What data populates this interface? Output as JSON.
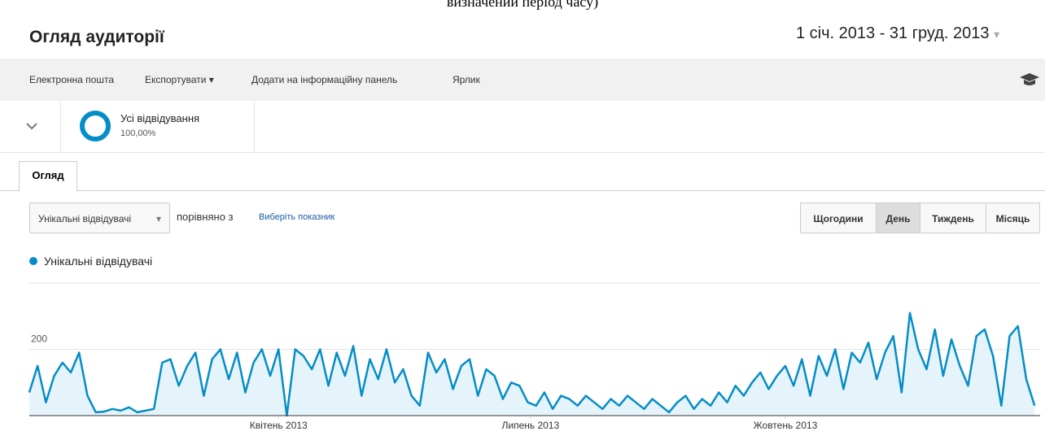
{
  "top_caption": "визначений період часу)",
  "header": {
    "title": "Огляд аудиторії",
    "date_range": "1 січ. 2013 - 31 груд. 2013"
  },
  "toolbar": {
    "items": [
      "Електронна пошта",
      "Експортувати ▾",
      "Додати на інформаційну панель",
      "Ярлик"
    ]
  },
  "segment": {
    "name": "Усі відвідування",
    "percent": "100,00%"
  },
  "tabs": [
    "Огляд"
  ],
  "controls": {
    "metric": "Унікальні відвідувачі",
    "compare_text": "порівняно з",
    "compare_link": "Виберіть показник",
    "intervals": [
      "Щогодини",
      "День",
      "Тиждень",
      "Місяць"
    ],
    "active_interval": 1
  },
  "chart": {
    "type": "line",
    "series": [
      {
        "name": "Унікальні відвідувачі",
        "color": "#058dc7",
        "values": [
          70,
          150,
          40,
          120,
          160,
          130,
          190,
          60,
          10,
          12,
          20,
          15,
          25,
          10,
          15,
          20,
          160,
          170,
          90,
          150,
          190,
          60,
          170,
          200,
          110,
          190,
          70,
          160,
          200,
          120,
          200,
          0,
          200,
          180,
          140,
          200,
          90,
          190,
          120,
          210,
          60,
          170,
          110,
          200,
          100,
          140,
          60,
          30,
          190,
          130,
          170,
          80,
          150,
          170,
          60,
          140,
          120,
          50,
          100,
          90,
          40,
          30,
          70,
          20,
          60,
          50,
          30,
          60,
          40,
          20,
          50,
          30,
          60,
          40,
          20,
          50,
          30,
          10,
          40,
          60,
          20,
          50,
          30,
          70,
          40,
          90,
          60,
          100,
          130,
          80,
          120,
          150,
          90,
          170,
          60,
          180,
          120,
          200,
          80,
          190,
          160,
          220,
          110,
          190,
          240,
          70,
          310,
          200,
          140,
          260,
          120,
          230,
          150,
          90,
          240,
          260,
          180,
          30,
          240,
          270,
          110,
          30
        ]
      }
    ],
    "ylim": [
      0,
      400
    ],
    "yticks": [
      200,
      400
    ],
    "grid": true,
    "xlim": [
      0,
      121.67
    ],
    "xticks": [
      {
        "value": 30,
        "label": "Квітень 2013"
      },
      {
        "value": 60.33,
        "label": "Липень 2013"
      },
      {
        "value": 91,
        "label": "Жовтень 2013"
      }
    ]
  }
}
